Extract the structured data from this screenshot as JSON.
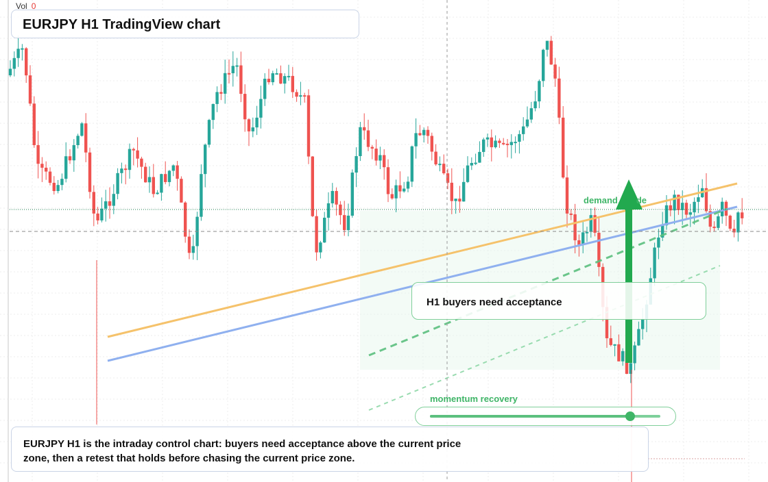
{
  "volume": {
    "label": "Vol",
    "value": "0"
  },
  "title": "EURJPY H1 TradingView chart",
  "callout": "H1 buyers need acceptance",
  "demand_label": "demand",
  "demand_suffix": "de",
  "momentum": {
    "label": "momentum recovery",
    "level": 0.87
  },
  "note": "EURJPY H1 is the intraday control chart: buyers need acceptance above the current price zone, then a retest that holds before chasing the current price zone.",
  "colors": {
    "up": "#26a69a",
    "down": "#ef5350",
    "accent_green": "#22a94f",
    "orange_line": "#f5c26b",
    "blue_line": "#8fb0ef"
  },
  "chart_data": {
    "type": "candlestick",
    "symbol": "EURJPY",
    "timeframe": "H1",
    "ohlc": [
      [
        1,
        2,
        3,
        4
      ]
    ],
    "grid": true,
    "overlays": [
      "orange trendline",
      "blue trendline",
      "green dashed trendlines",
      "demand zone",
      "up arrow"
    ]
  }
}
